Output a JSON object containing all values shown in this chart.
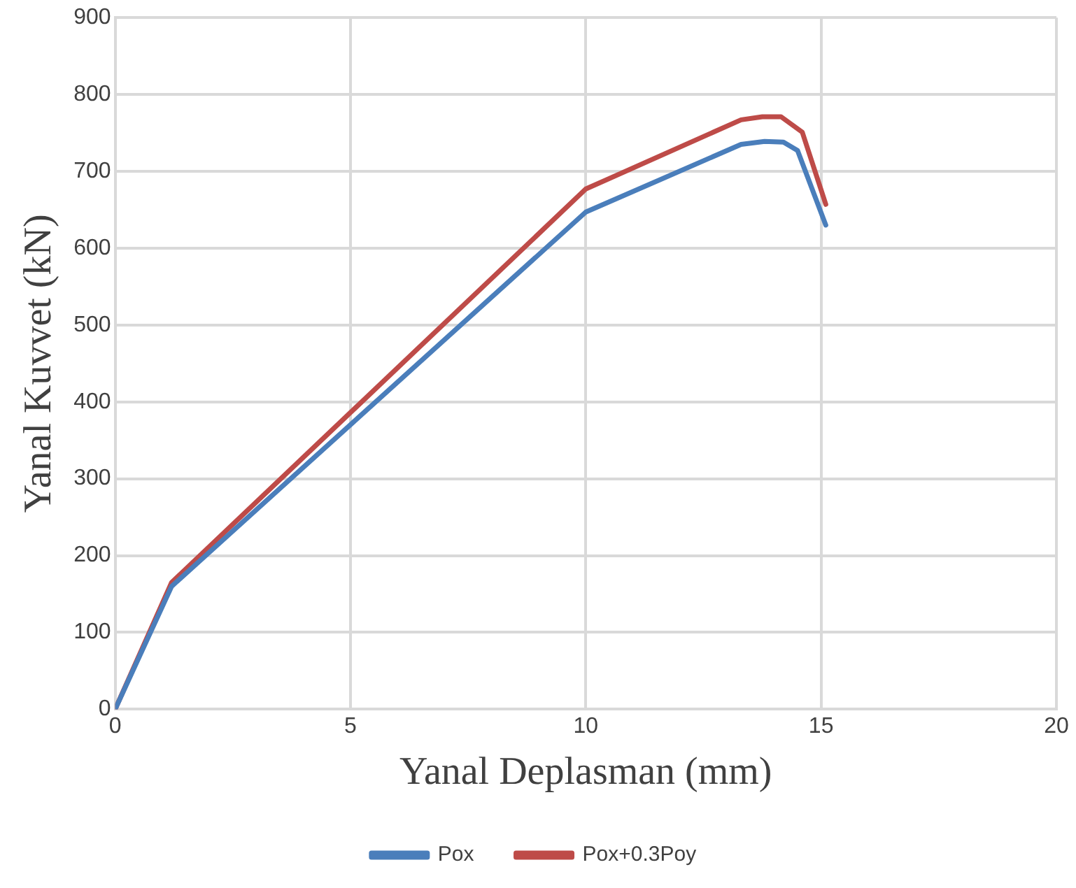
{
  "chart_data": {
    "type": "line",
    "xlabel": "Yanal Deplasman (mm)",
    "ylabel": "Yanal Kuvvet (kN)",
    "xlim": [
      0,
      20
    ],
    "xticks": [
      0,
      5,
      10,
      15,
      20
    ],
    "ylim": [
      0,
      900
    ],
    "yticks": [
      0,
      100,
      200,
      300,
      400,
      500,
      600,
      700,
      800,
      900
    ],
    "grid": true,
    "legend": "bottom",
    "marker": "none",
    "series": [
      {
        "name": "Pox",
        "color": "#4a7ebb",
        "x": [
          0,
          1.2,
          10,
          13.3,
          13.8,
          14.2,
          14.5,
          15.1
        ],
        "values": [
          0,
          160,
          647,
          735,
          739,
          738,
          727,
          630
        ]
      },
      {
        "name": "Pox+0.3Poy",
        "color": "#be4b48",
        "x": [
          0,
          1.2,
          10,
          13.3,
          13.75,
          14.15,
          14.6,
          15.1
        ],
        "values": [
          0,
          165,
          677,
          767,
          771,
          771,
          751,
          657
        ]
      }
    ]
  }
}
